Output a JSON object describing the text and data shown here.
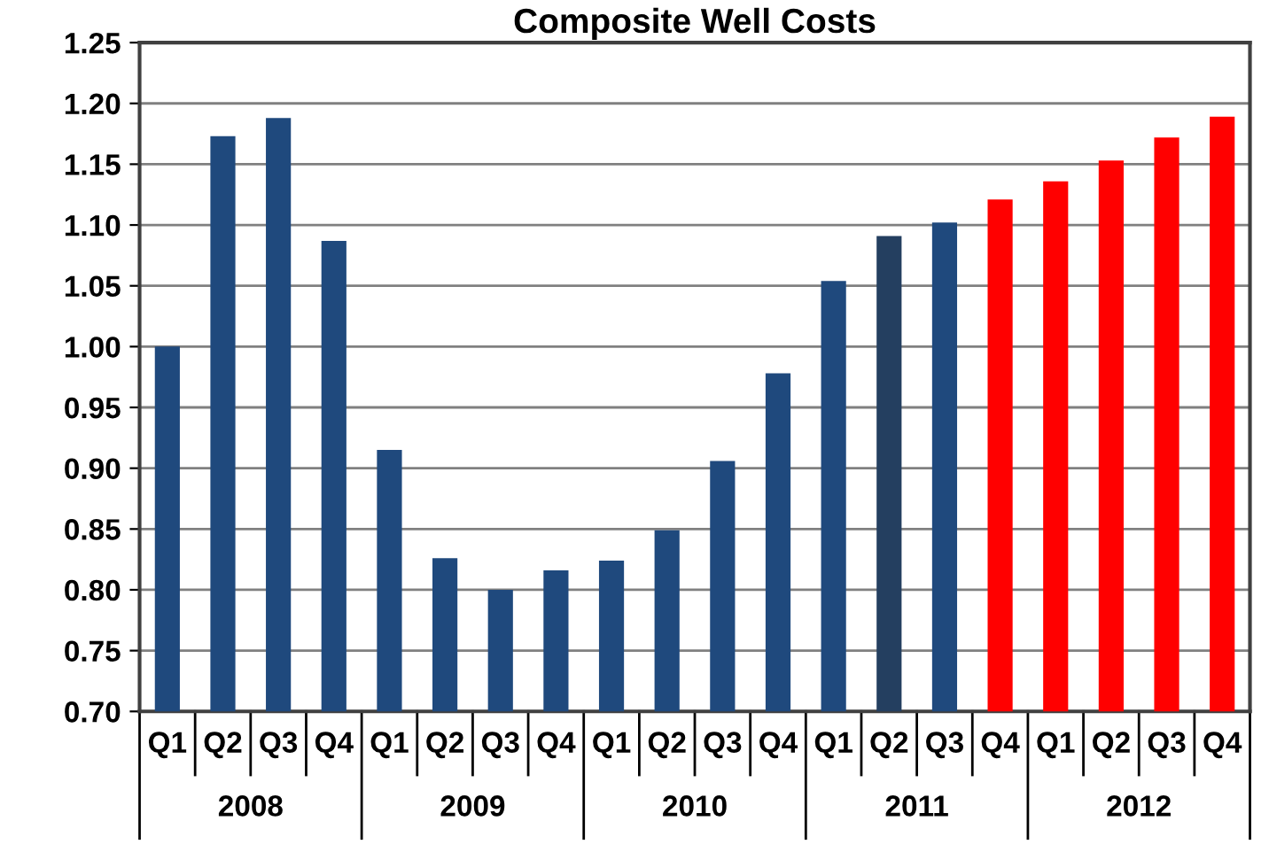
{
  "chart_data": {
    "type": "bar",
    "title": "Composite Well Costs",
    "categories": [
      "Q1",
      "Q2",
      "Q3",
      "Q4",
      "Q1",
      "Q2",
      "Q3",
      "Q4",
      "Q1",
      "Q2",
      "Q3",
      "Q4",
      "Q1",
      "Q2",
      "Q3",
      "Q4",
      "Q1",
      "Q2",
      "Q3",
      "Q4"
    ],
    "values": [
      1.0,
      1.173,
      1.188,
      1.087,
      0.915,
      0.826,
      0.8,
      0.816,
      0.824,
      0.849,
      0.906,
      0.978,
      1.054,
      1.091,
      1.102,
      1.121,
      1.136,
      1.153,
      1.172,
      1.189
    ],
    "colors": [
      "#1f497d",
      "#1f497d",
      "#1f497d",
      "#1f497d",
      "#1f497d",
      "#1f497d",
      "#1f497d",
      "#1f497d",
      "#1f497d",
      "#1f497d",
      "#1f497d",
      "#1f497d",
      "#1f497d",
      "#243f60",
      "#1f497d",
      "#ff0000",
      "#ff0000",
      "#ff0000",
      "#ff0000",
      "#ff0000"
    ],
    "annotations": [
      "2008",
      "2009",
      "2010",
      "2011",
      "2012"
    ],
    "ylim": [
      0.7,
      1.25
    ],
    "yticks": [
      {
        "value": 0.7,
        "label": "0.70"
      },
      {
        "value": 0.75,
        "label": "0.75"
      },
      {
        "value": 0.8,
        "label": "0.80"
      },
      {
        "value": 0.85,
        "label": "0.85"
      },
      {
        "value": 0.9,
        "label": "0.90"
      },
      {
        "value": 0.95,
        "label": "0.95"
      },
      {
        "value": 1.0,
        "label": "1.00"
      },
      {
        "value": 1.05,
        "label": "1.05"
      },
      {
        "value": 1.1,
        "label": "1.10"
      },
      {
        "value": 1.15,
        "label": "1.15"
      },
      {
        "value": 1.2,
        "label": "1.20"
      },
      {
        "value": 1.25,
        "label": "1.25"
      }
    ],
    "grid": "y",
    "legend": false
  }
}
